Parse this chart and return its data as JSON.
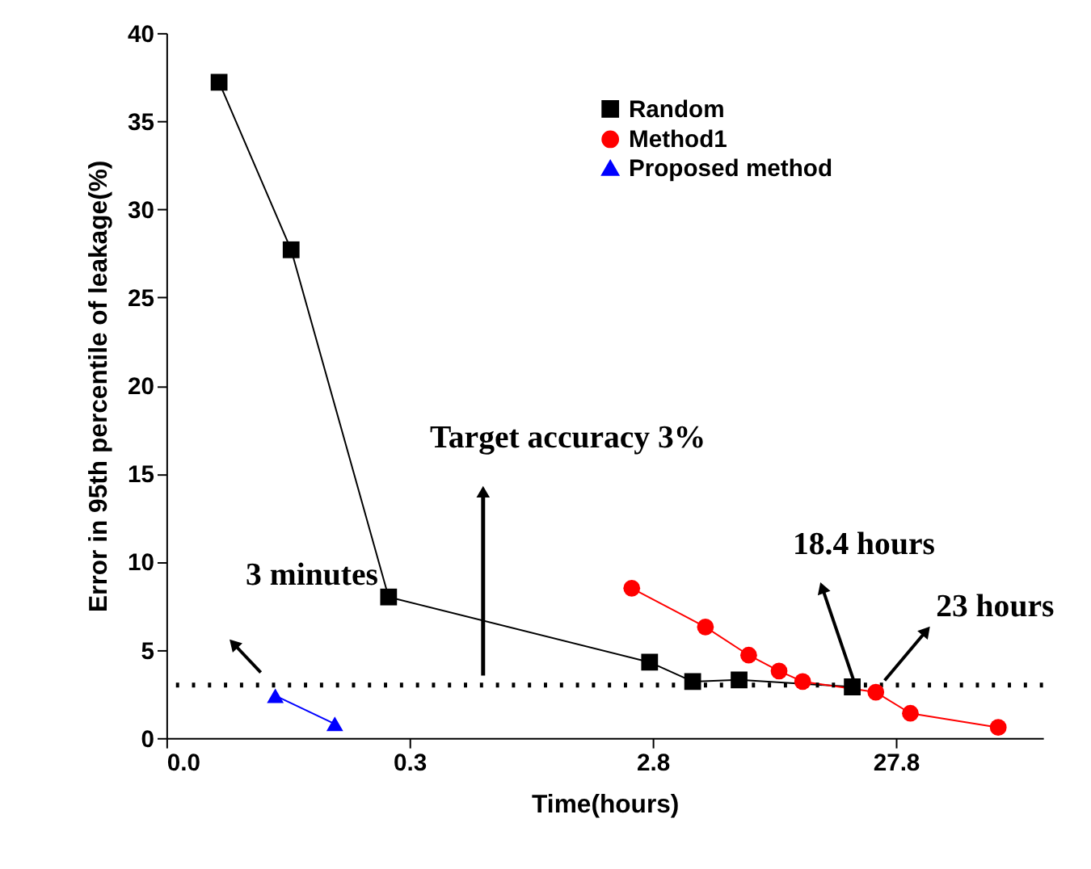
{
  "chart_data": {
    "type": "line",
    "xlabel": "Time(hours)",
    "ylabel": "Error in 95th percentile of leakage(%)",
    "log": "x",
    "xlim": [
      0.0278,
      112
    ],
    "xticks": [
      {
        "value": 0.0278,
        "label": "0.0"
      },
      {
        "value": 0.278,
        "label": "0.3"
      },
      {
        "value": 2.78,
        "label": "2.8"
      },
      {
        "value": 27.8,
        "label": "27.8"
      }
    ],
    "ylim": [
      0,
      40
    ],
    "yticks": [
      0,
      5,
      10,
      15,
      20,
      25,
      30,
      35,
      40
    ],
    "grid": false,
    "legend": "top right",
    "series": [
      {
        "name": "Random",
        "color": "#000000",
        "marker": "square",
        "x": [
          0.0458,
          0.0906,
          0.228,
          2.7,
          4.06,
          6.3,
          18.4
        ],
        "values": [
          37.2,
          27.7,
          8.0,
          4.3,
          3.2,
          3.3,
          2.9
        ]
      },
      {
        "name": "Method1",
        "color": "#ff0000",
        "marker": "circle",
        "x": [
          2.28,
          4.58,
          6.9,
          9.2,
          11.5,
          23,
          31.9,
          73.3
        ],
        "values": [
          8.5,
          6.3,
          4.7,
          3.8,
          3.2,
          2.6,
          1.4,
          0.6
        ]
      },
      {
        "name": "Proposed method",
        "color": "#0000ff",
        "marker": "triangle",
        "x": [
          0.078,
          0.137
        ],
        "values": [
          2.4,
          0.8
        ]
      }
    ],
    "ref_lines": [
      {
        "axis": "y",
        "value": 3,
        "line_style": "dotted",
        "color": "#000000"
      }
    ],
    "annotations": [
      "3 minutes",
      "Target accuracy 3%",
      "18.4 hours",
      "23 hours"
    ]
  }
}
